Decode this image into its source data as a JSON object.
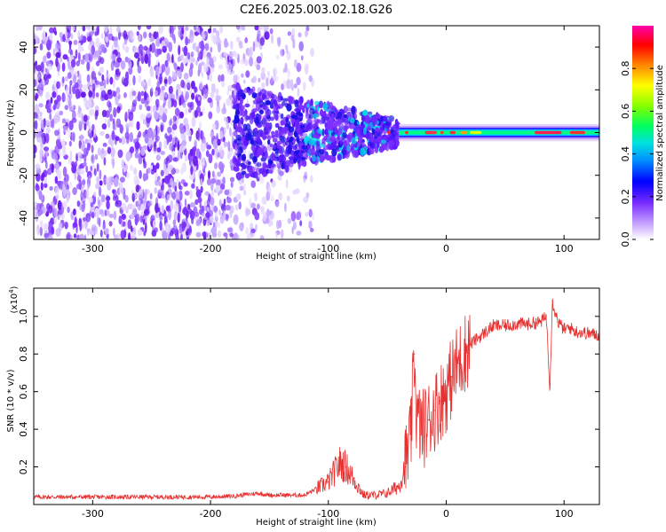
{
  "chart_data": [
    {
      "type": "heatmap",
      "title": "C2E6.2025.003.02.18.G26",
      "xlabel": "Height of straight line (km)",
      "ylabel": "Frequency (Hz)",
      "xlim": [
        -350,
        130
      ],
      "ylim": [
        -50,
        50
      ],
      "xticks": [
        -300,
        -200,
        -100,
        0,
        100
      ],
      "yticks": [
        -40,
        -20,
        0,
        20,
        40
      ],
      "colorbar": {
        "label": "Normalized spectral amplitude",
        "range": [
          0.0,
          1.0
        ],
        "ticks": [
          "0.0",
          "0.2",
          "0.4",
          "0.6",
          "0.8"
        ],
        "colors": [
          "#ffffff",
          "#d0b0ff",
          "#7a2cff",
          "#0000ff",
          "#00c8ff",
          "#00ff80",
          "#80ff00",
          "#ffff00",
          "#ff8000",
          "#ff0000",
          "#ff0088"
        ]
      },
      "features": {
        "noise_region_x": [
          -350,
          -120
        ],
        "transition_region_x": [
          -180,
          -40
        ],
        "signal_line_x": [
          -40,
          130
        ],
        "signal_line_frequency": 0
      }
    },
    {
      "type": "line",
      "xlabel": "Height of straight line (km)",
      "ylabel": "SNR (10 * v/v)",
      "scale_note": "(x10",
      "scale_exp": "4",
      "xlim": [
        -350,
        130
      ],
      "ylim": [
        0,
        1.15
      ],
      "xticks": [
        -300,
        -200,
        -100,
        0,
        100
      ],
      "yticks": [
        "0.2",
        "0.4",
        "0.6",
        "0.8",
        "1.0"
      ],
      "series": [
        {
          "name": "SNR",
          "color": "#e83030",
          "x": [
            -350,
            -300,
            -250,
            -200,
            -180,
            -160,
            -150,
            -120,
            -100,
            -90,
            -85,
            -80,
            -70,
            -60,
            -50,
            -40,
            -35,
            -30,
            -27,
            -25,
            -20,
            -15,
            -10,
            -5,
            0,
            5,
            10,
            20,
            30,
            40,
            50,
            60,
            70,
            80,
            85,
            88,
            90,
            95,
            100,
            105,
            110,
            120,
            130
          ],
          "y": [
            0.04,
            0.04,
            0.04,
            0.04,
            0.045,
            0.06,
            0.05,
            0.05,
            0.12,
            0.22,
            0.2,
            0.15,
            0.05,
            0.05,
            0.06,
            0.1,
            0.2,
            0.35,
            0.8,
            0.45,
            0.4,
            0.45,
            0.5,
            0.55,
            0.6,
            0.68,
            0.75,
            0.85,
            0.9,
            0.95,
            0.95,
            0.96,
            0.96,
            0.97,
            1.0,
            0.62,
            1.08,
            0.97,
            0.93,
            0.94,
            0.92,
            0.91,
            0.9
          ]
        }
      ]
    }
  ]
}
